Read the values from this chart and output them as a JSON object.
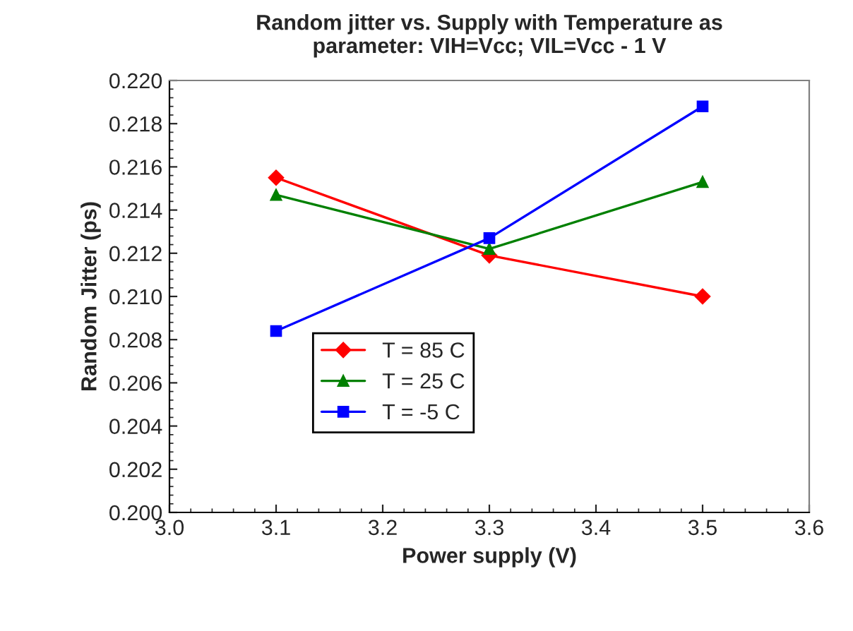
{
  "chart_data": {
    "type": "line",
    "title": "Random jitter vs. Supply with Temperature as\nparameter: VIH=Vcc; VIL=Vcc - 1 V",
    "xlabel": "Power supply (V)",
    "ylabel": "Random Jitter (ps)",
    "x": [
      3.1,
      3.3,
      3.5
    ],
    "series": [
      {
        "name": "T = 85 C",
        "color": "#ff0000",
        "marker": "diamond",
        "values": [
          0.2155,
          0.2119,
          0.21
        ]
      },
      {
        "name": "T = 25 C",
        "color": "#008000",
        "marker": "triangle",
        "values": [
          0.2147,
          0.2122,
          0.2153
        ]
      },
      {
        "name": "T = -5 C",
        "color": "#0000ff",
        "marker": "square",
        "values": [
          0.2084,
          0.2127,
          0.2188
        ]
      }
    ],
    "xlim": [
      3.0,
      3.6
    ],
    "xticks": [
      {
        "value": 3.0,
        "label": "3.0"
      },
      3.1,
      3.2,
      3.3,
      3.4,
      3.5,
      3.6
    ],
    "ylim": [
      0.2,
      0.22
    ],
    "yticks": [
      {
        "value": 0.2,
        "label": "0.200"
      },
      {
        "value": 0.202,
        "label": "0.202"
      },
      {
        "value": 0.204,
        "label": "0.204"
      },
      {
        "value": 0.206,
        "label": "0.206"
      },
      {
        "value": 0.208,
        "label": "0.208"
      },
      {
        "value": 0.21,
        "label": "0.210"
      },
      {
        "value": 0.212,
        "label": "0.212"
      },
      {
        "value": 0.214,
        "label": "0.214"
      },
      {
        "value": 0.216,
        "label": "0.216"
      },
      {
        "value": 0.218,
        "label": "0.218"
      },
      {
        "value": 0.22,
        "label": "0.220"
      }
    ],
    "grid": false,
    "legend": "center",
    "line_style": "solid"
  }
}
